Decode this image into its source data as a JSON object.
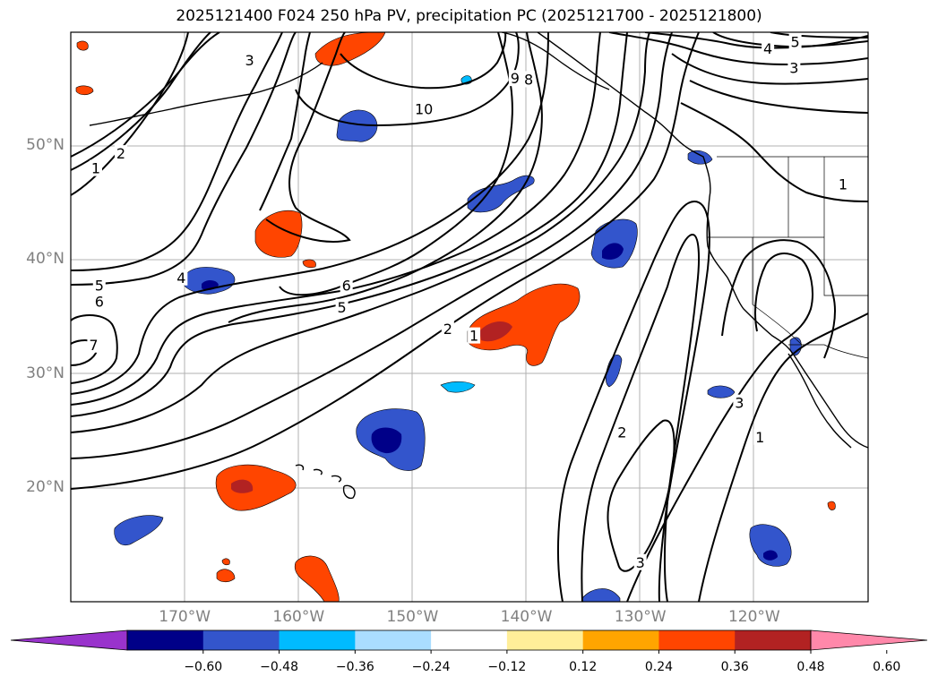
{
  "title": "2025121400 F024 250 hPa PV, precipitation PC (2025121700 - 2025121800)",
  "map": {
    "lon_range": [
      -180,
      -110
    ],
    "lat_range": [
      10,
      60
    ],
    "lat_labels": [
      {
        "lat": 50,
        "text": "50°N"
      },
      {
        "lat": 40,
        "text": "40°N"
      },
      {
        "lat": 30,
        "text": "30°N"
      },
      {
        "lat": 20,
        "text": "20°N"
      }
    ],
    "lon_labels": [
      {
        "lon": -170,
        "text": "170°W"
      },
      {
        "lon": -160,
        "text": "160°W"
      },
      {
        "lon": -150,
        "text": "150°W"
      },
      {
        "lon": -140,
        "text": "140°W"
      },
      {
        "lon": -130,
        "text": "130°W"
      },
      {
        "lon": -120,
        "text": "120°W"
      }
    ],
    "contour_labels": [
      {
        "text": "1",
        "lon": -177.8,
        "lat": 48.0
      },
      {
        "text": "2",
        "lon": -175.6,
        "lat": 49.3
      },
      {
        "text": "3",
        "lon": -164.3,
        "lat": 57.5
      },
      {
        "text": "10",
        "lon": -149.0,
        "lat": 53.2
      },
      {
        "text": "9",
        "lon": -141.0,
        "lat": 55.9
      },
      {
        "text": "8",
        "lon": -139.8,
        "lat": 55.8
      },
      {
        "text": "5",
        "lon": -116.4,
        "lat": 59.1
      },
      {
        "text": "4",
        "lon": -118.8,
        "lat": 58.5
      },
      {
        "text": "3",
        "lon": -116.5,
        "lat": 56.8
      },
      {
        "text": "1",
        "lon": -112.2,
        "lat": 46.6
      },
      {
        "text": "4",
        "lon": -170.3,
        "lat": 38.4
      },
      {
        "text": "5",
        "lon": -177.5,
        "lat": 37.7
      },
      {
        "text": "6",
        "lon": -177.5,
        "lat": 36.3
      },
      {
        "text": "7",
        "lon": -178.0,
        "lat": 32.5
      },
      {
        "text": "6",
        "lon": -155.8,
        "lat": 37.7
      },
      {
        "text": "5",
        "lon": -156.2,
        "lat": 35.8
      },
      {
        "text": "2",
        "lon": -146.9,
        "lat": 33.9
      },
      {
        "text": "1",
        "lon": -144.6,
        "lat": 33.3
      },
      {
        "text": "2",
        "lon": -131.6,
        "lat": 24.8
      },
      {
        "text": "3",
        "lon": -130.0,
        "lat": 13.4
      },
      {
        "text": "3",
        "lon": -121.3,
        "lat": 27.4
      },
      {
        "text": "1",
        "lon": -119.5,
        "lat": 24.4
      }
    ],
    "colors": {
      "coast": "#000000",
      "grid": "#b0b0b0",
      "contour": "#000000"
    }
  },
  "colorbar": {
    "colors": [
      "#9933cc",
      "#000088",
      "#3355cc",
      "#00bbff",
      "#aaddff",
      "#ffffff",
      "#ffee99",
      "#ffa500",
      "#ff4500",
      "#b22222",
      "#ff88aa"
    ],
    "tick_labels": [
      "−0.60",
      "−0.48",
      "−0.36",
      "−0.24",
      "−0.12",
      "0.12",
      "0.24",
      "0.36",
      "0.48",
      "0.60"
    ]
  }
}
